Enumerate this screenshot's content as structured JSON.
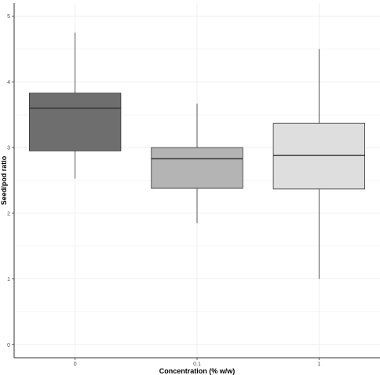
{
  "chart_data": {
    "type": "box",
    "xlabel": "Concentration (% w/w)",
    "ylabel": "Seed/pod ratio",
    "ylim": [
      -0.2,
      5.2
    ],
    "yticks": [
      0,
      1,
      2,
      3,
      4,
      5
    ],
    "ytick_labels": [
      "0",
      "1",
      "2",
      "3",
      "4",
      "5"
    ],
    "grid": true,
    "categories": [
      "0",
      "0.1",
      "1"
    ],
    "boxes": [
      {
        "category": "0",
        "min": 2.53,
        "q1": 2.95,
        "median": 3.6,
        "q3": 3.83,
        "max": 4.75,
        "fill": "#6e6e6e"
      },
      {
        "category": "0.1",
        "min": 1.85,
        "q1": 2.38,
        "median": 2.83,
        "q3": 3.0,
        "max": 3.67,
        "fill": "#b4b4b4"
      },
      {
        "category": "1",
        "min": 1.0,
        "q1": 2.37,
        "median": 2.88,
        "q3": 3.37,
        "max": 4.5,
        "fill": "#dedede"
      }
    ]
  },
  "colors": {
    "grid": "#ebebeb",
    "axis": "#333333",
    "box_stroke": "#333333"
  }
}
